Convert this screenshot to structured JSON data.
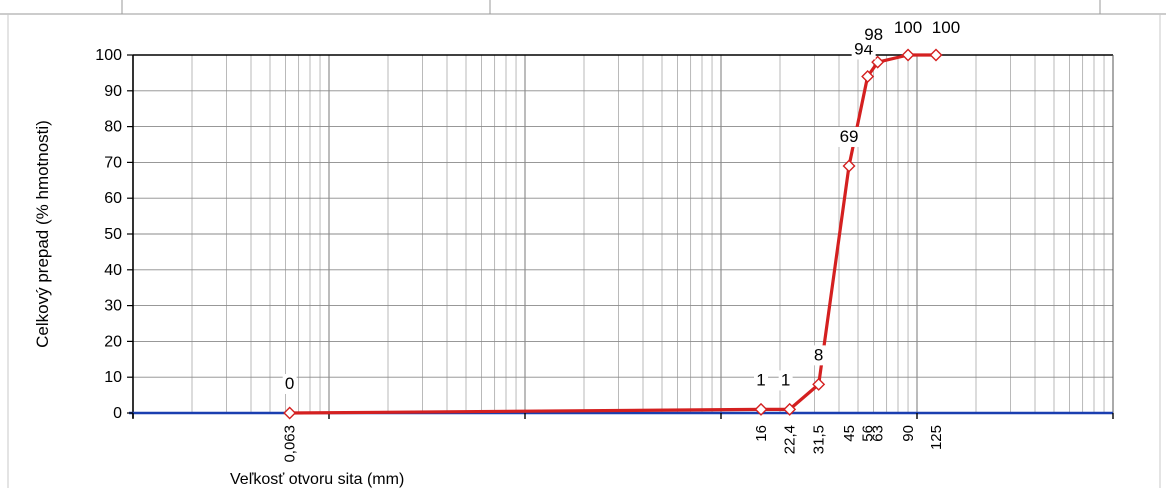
{
  "chart_data": {
    "type": "line",
    "title": "",
    "xlabel": "Veľkosť otvoru sita (mm)",
    "ylabel": "Celkový prepad  (% hmotnosti)",
    "x_scale": "log",
    "xlim": [
      0.01,
      1000
    ],
    "ylim": [
      0,
      100
    ],
    "yticks": [
      "0",
      "10",
      "20",
      "30",
      "40",
      "50",
      "60",
      "70",
      "80",
      "90",
      "100"
    ],
    "grid": true,
    "legend": "none",
    "series": [
      {
        "color": "#d42020",
        "x_labels": [
          "0,063",
          "16",
          "22,4",
          "31,5",
          "45",
          "56",
          "63",
          "90",
          "125"
        ],
        "x": [
          0.063,
          16,
          22.4,
          31.5,
          45,
          56,
          63,
          90,
          125
        ],
        "y": [
          0,
          1,
          1,
          8,
          69,
          94,
          98,
          100,
          100
        ],
        "data_labels": [
          "0",
          "1",
          "1",
          "8",
          "69",
          "94",
          "98",
          "100",
          "100"
        ]
      }
    ]
  }
}
